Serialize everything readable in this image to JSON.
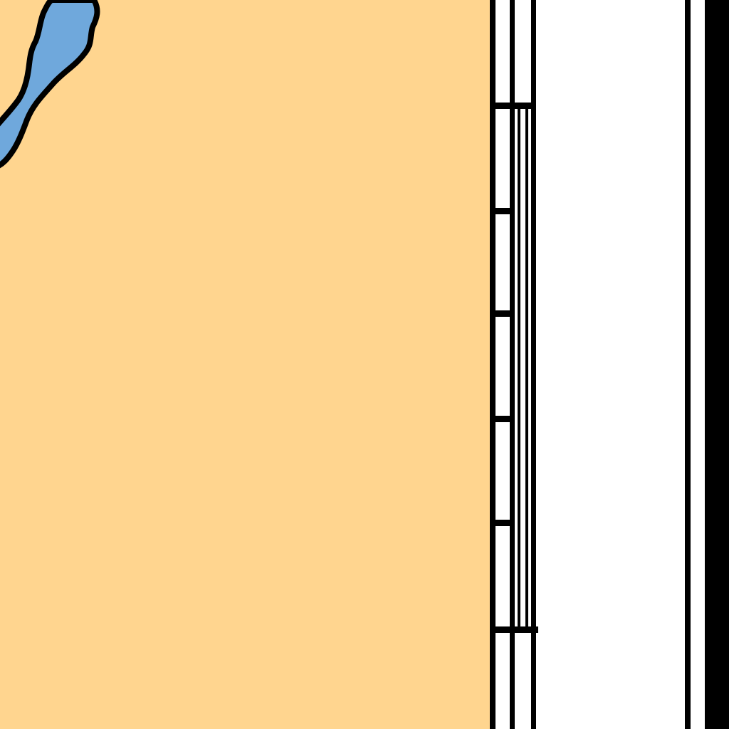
{
  "map": {
    "colors": {
      "land": "#ffd58f",
      "water": "#6fa8dc",
      "outline": "#000000",
      "background": "#ffffff"
    },
    "features": [
      {
        "id": "land-area",
        "kind": "land"
      },
      {
        "id": "lake",
        "kind": "water"
      },
      {
        "id": "map-neatline-frame",
        "kind": "map-frame"
      },
      {
        "id": "scale-bar-graduated",
        "kind": "scale-bar",
        "segments": 6
      },
      {
        "id": "outer-border",
        "kind": "page-border"
      }
    ]
  }
}
